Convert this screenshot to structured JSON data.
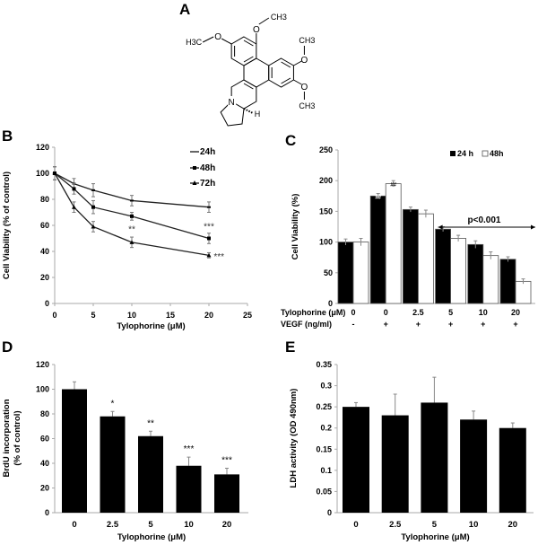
{
  "figure": {
    "panel_labels": [
      "A",
      "B",
      "C",
      "D",
      "E"
    ],
    "structure": {
      "labels": {
        "ome_top": "CH3",
        "ome_left": "H3C",
        "ome_right_top": "CH3",
        "ome_right_bottom": "CH3",
        "nitrogen": "N",
        "stereo_h": "H"
      }
    }
  },
  "chart_data": [
    {
      "panel": "B",
      "type": "line",
      "x": [
        0,
        2.5,
        5,
        10,
        20
      ],
      "series": [
        {
          "name": "24h",
          "values": [
            100,
            92,
            87,
            79,
            74
          ],
          "errors": [
            5,
            4,
            5,
            4,
            4
          ],
          "marker": "dash"
        },
        {
          "name": "48h",
          "values": [
            100,
            88,
            74,
            67,
            50
          ],
          "errors": [
            5,
            4,
            5,
            3,
            4
          ],
          "marker": "square"
        },
        {
          "name": "72h",
          "values": [
            100,
            74,
            59,
            47,
            37
          ],
          "errors": [
            5,
            4,
            4,
            4,
            2
          ],
          "marker": "triangle"
        }
      ],
      "xlim": [
        0,
        25
      ],
      "ylim": [
        0,
        120
      ],
      "xticks": [
        "0",
        "5",
        "10",
        "15",
        "20",
        "25"
      ],
      "yticks": [
        "0",
        "20",
        "40",
        "60",
        "80",
        "100",
        "120"
      ],
      "xlabel": "Tylophorine (μM)",
      "ylabel": "Cell Viability  (% of control)",
      "legend_position": "top-right",
      "annotations": [
        {
          "text": "**",
          "x": 10,
          "y": 57
        },
        {
          "text": "***",
          "x": 20,
          "y": 59
        },
        {
          "text": "***",
          "x": 21.3,
          "y": 36
        }
      ]
    },
    {
      "panel": "C",
      "type": "bar",
      "categories": [
        "0",
        "0",
        "2.5",
        "5",
        "10",
        "20"
      ],
      "vegf": [
        "-",
        "+",
        "+",
        "+",
        "+",
        "+"
      ],
      "row_labels": {
        "tylophorine": "Tylophorine (μM)",
        "vegf": "VEGF (ng/ml)"
      },
      "series": [
        {
          "name": "24 h",
          "values": [
            100,
            175,
            153,
            121,
            96,
            72
          ],
          "errors": [
            5,
            4,
            4,
            4,
            6,
            4
          ],
          "color": "#000000"
        },
        {
          "name": "48h",
          "values": [
            100,
            195,
            146,
            106,
            78,
            36
          ],
          "errors": [
            6,
            5,
            6,
            5,
            6,
            4
          ],
          "color": "#ffffff"
        }
      ],
      "ylim": [
        0,
        250
      ],
      "yticks": [
        "0",
        "50",
        "100",
        "150",
        "200",
        "250"
      ],
      "ylabel": "Cell Viability (%)",
      "legend_position": "top-right",
      "bar_marks": {
        "text": "##",
        "category_index": 1
      },
      "bracket": {
        "text": "p<0.001",
        "from_category": 3
      }
    },
    {
      "panel": "D",
      "type": "bar",
      "categories": [
        "0",
        "2.5",
        "5",
        "10",
        "20"
      ],
      "values": [
        100,
        78,
        62,
        38,
        31
      ],
      "errors": [
        6,
        4,
        4,
        7,
        5
      ],
      "significance": [
        "",
        "*",
        "**",
        "***",
        "***"
      ],
      "ylim": [
        0,
        120
      ],
      "yticks": [
        "0",
        "20",
        "40",
        "60",
        "80",
        "100",
        "120"
      ],
      "xlabel": "Tylophorine (μM)",
      "ylabel": [
        "BrdU incorporation",
        "(% of control)"
      ]
    },
    {
      "panel": "E",
      "type": "bar",
      "categories": [
        "0",
        "2.5",
        "5",
        "10",
        "20"
      ],
      "values": [
        0.25,
        0.23,
        0.26,
        0.22,
        0.2
      ],
      "errors": [
        0.01,
        0.05,
        0.06,
        0.02,
        0.012
      ],
      "ylim": [
        0,
        0.35
      ],
      "yticks": [
        "0",
        "0.05",
        "0.1",
        "0.15",
        "0.2",
        "0.25",
        "0.3",
        "0.35"
      ],
      "xlabel": "Tylophorine (μM)",
      "ylabel": "LDH activity (OD 490nm)"
    }
  ]
}
